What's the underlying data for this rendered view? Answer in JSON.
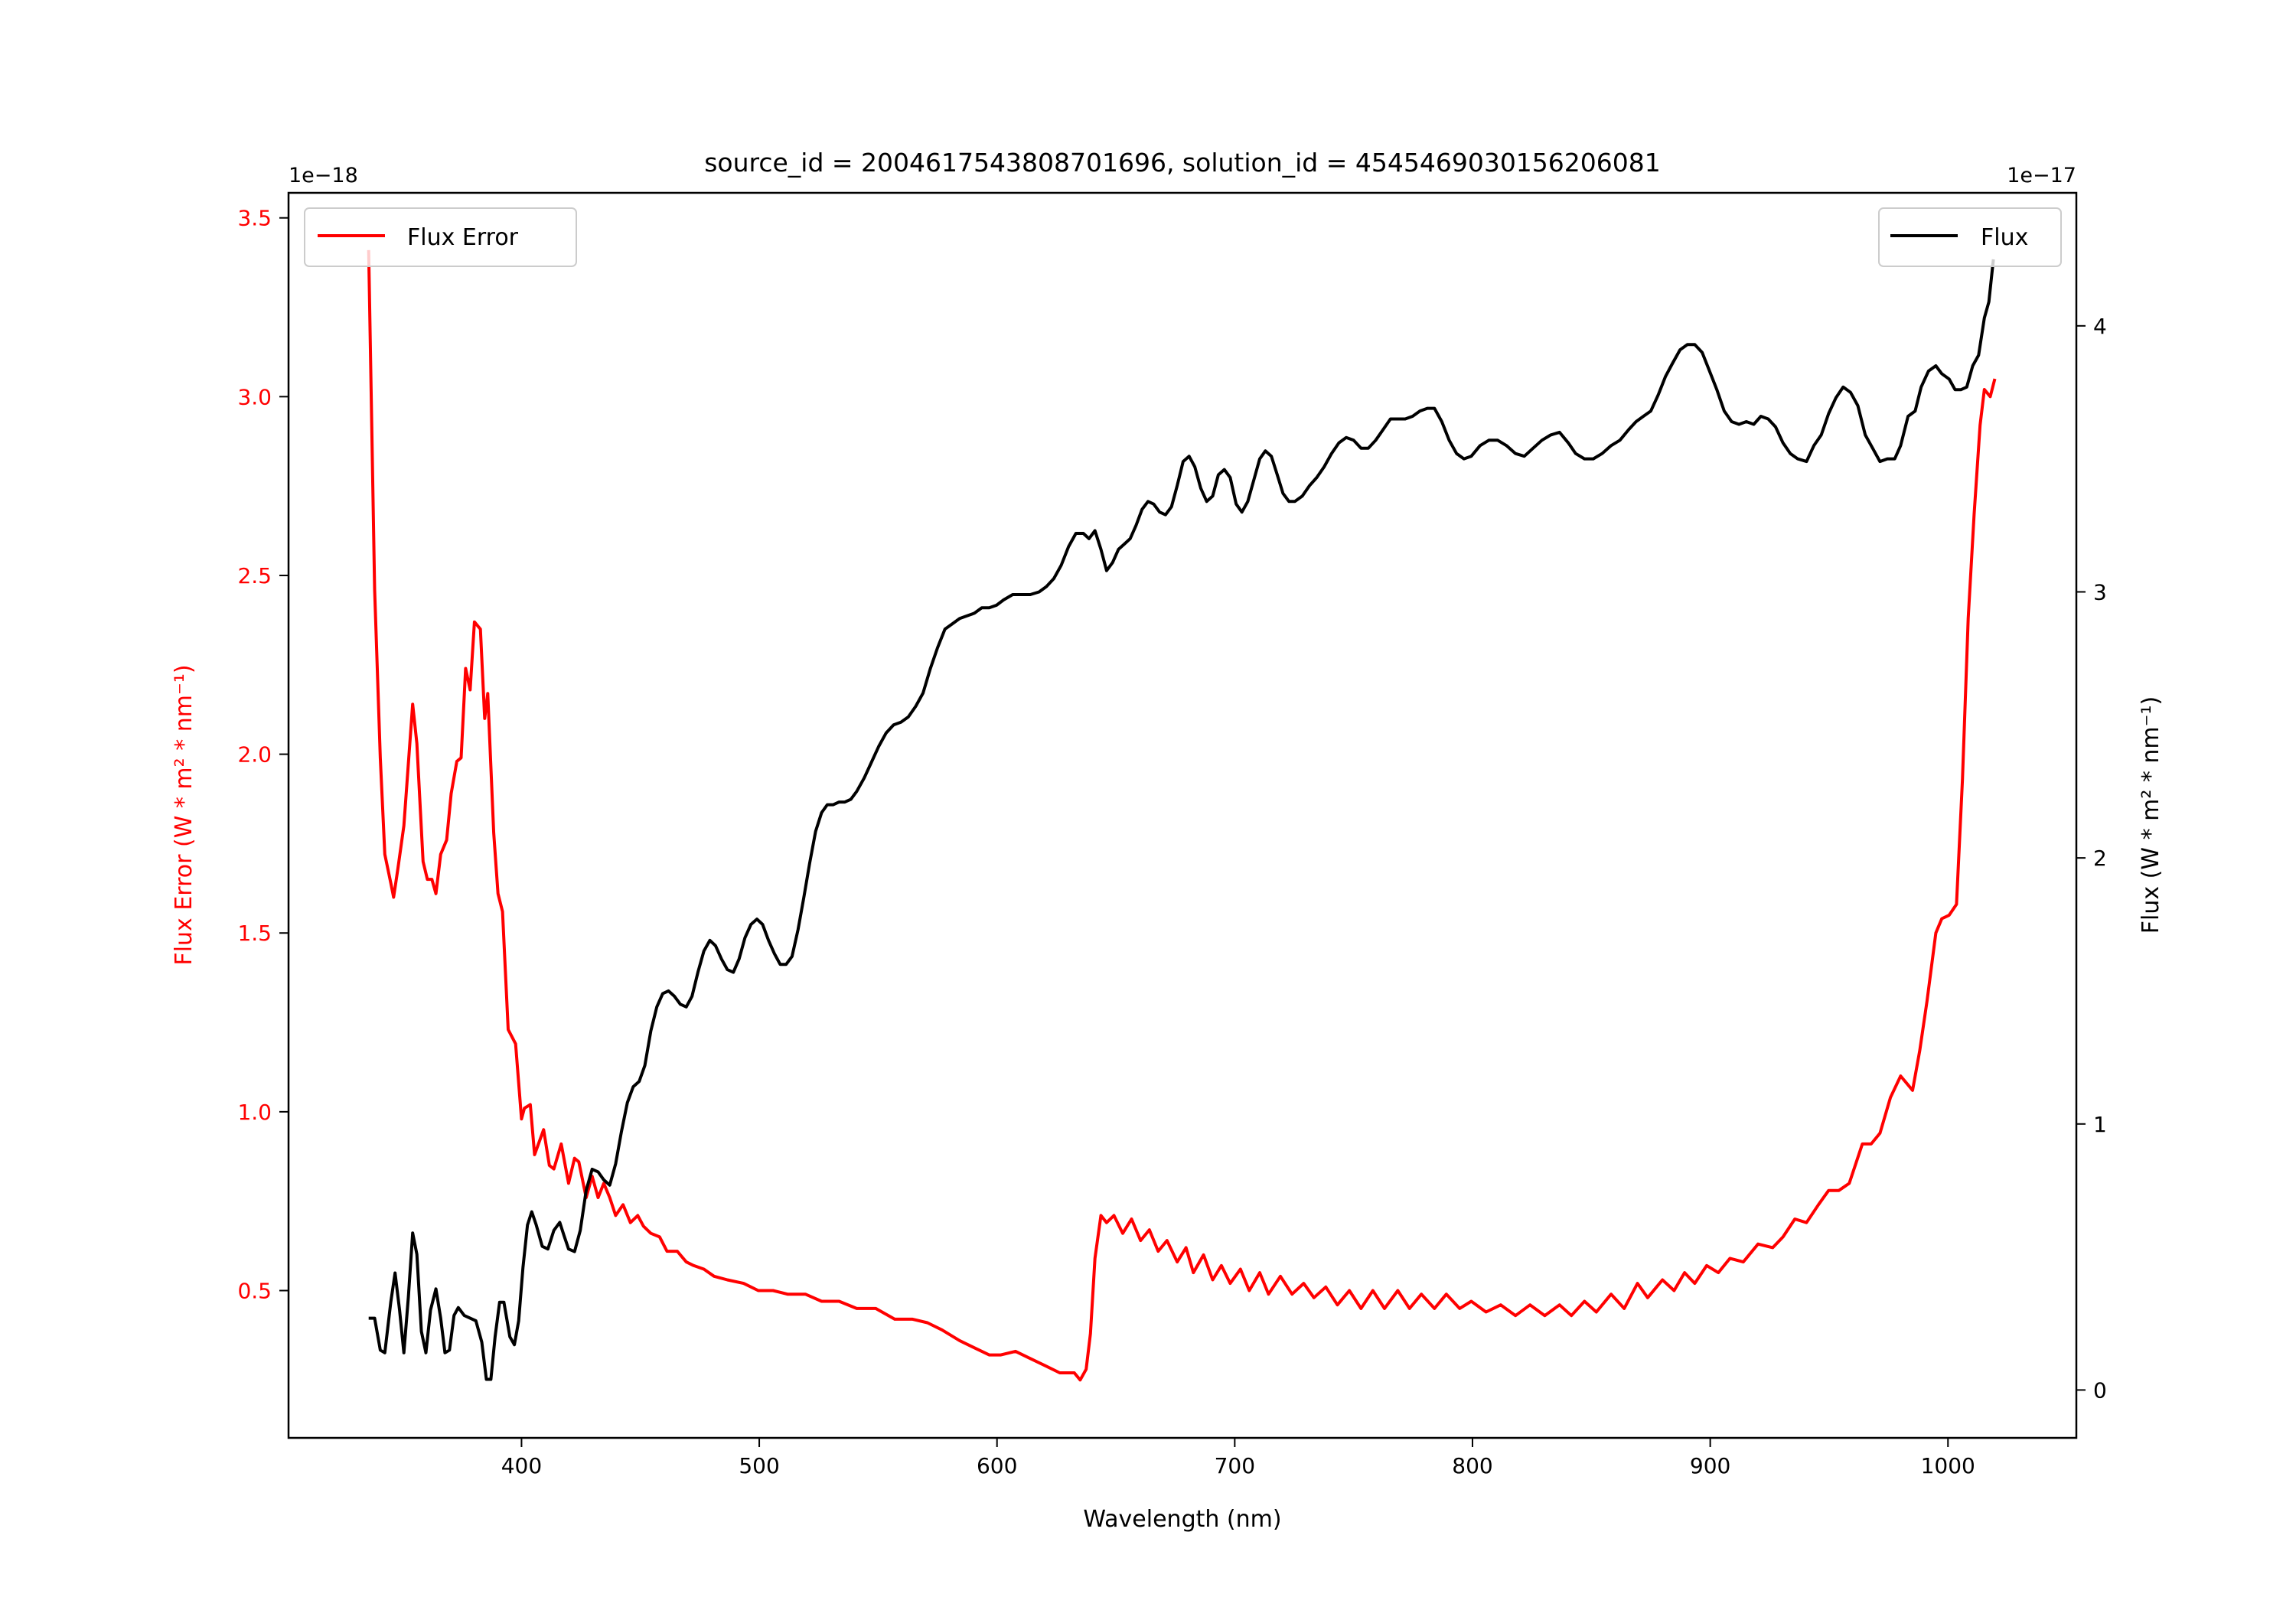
{
  "chart_data": {
    "type": "line",
    "title": "source_id = 2004617543808701696, solution_id = 4545469030156206081",
    "xlabel": "Wavelength (nm)",
    "ylabel_left": "Flux Error (W * m² * nm⁻¹)",
    "ylabel_right": "Flux (W * m² * nm⁻¹)",
    "left_offset_label": "1e−18",
    "right_offset_label": "1e−17",
    "xlim": [
      302,
      1054
    ],
    "ylim_left": [
      0.088,
      3.57
    ],
    "ylim_right": [
      -0.18,
      4.5
    ],
    "xticks": [
      "400",
      "500",
      "600",
      "700",
      "800",
      "900",
      "1000"
    ],
    "yticks_left": [
      "0.5",
      "1.0",
      "1.5",
      "2.0",
      "2.5",
      "3.0",
      "3.5"
    ],
    "yticks_right": [
      "0",
      "1",
      "2",
      "3",
      "4"
    ],
    "grid": false,
    "series": [
      {
        "name": "Flux Error",
        "axis": "left",
        "color": "#ff0000",
        "legend": "top-left",
        "x": [
          335.7,
          338.2,
          340.6,
          342.5,
          345,
          346.2,
          348,
          350.5,
          354.2,
          356,
          358.6,
          360.4,
          362.3,
          364,
          366,
          368.5,
          370.4,
          372.8,
          374.6,
          376.5,
          378.4,
          380.2,
          382.7,
          384.5,
          385.8,
          388.3,
          390.1,
          392,
          394.4,
          397.5,
          400,
          401.2,
          403.7,
          405.5,
          409.3,
          411.7,
          413.6,
          416.7,
          419.8,
          422.3,
          424.1,
          427.2,
          429.7,
          432.2,
          434.6,
          437.1,
          439.6,
          442.7,
          445.8,
          448.9,
          451.3,
          454.4,
          458.1,
          461.2,
          465.5,
          469.3,
          472.4,
          476.7,
          481,
          486.6,
          493.4,
          499.6,
          505.8,
          511.9,
          519.4,
          526.2,
          533.6,
          541,
          549,
          557,
          564.5,
          570.7,
          576.9,
          584.3,
          590.5,
          596.7,
          601.6,
          607.8,
          614,
          620.2,
          626.4,
          632.5,
          635,
          637.5,
          639.3,
          641.2,
          643.7,
          646.1,
          649.2,
          652.9,
          656.6,
          660.4,
          664.1,
          667.8,
          671.5,
          675.8,
          679.5,
          682.6,
          686.9,
          690.7,
          694.4,
          698.1,
          702.4,
          706.1,
          710.5,
          714.2,
          719.2,
          724.1,
          729,
          733.3,
          738.3,
          743.2,
          748.2,
          753.1,
          758.1,
          763,
          768.6,
          773.5,
          778.5,
          784,
          789,
          794.6,
          799.5,
          805.7,
          811.9,
          818.1,
          824.2,
          830.4,
          836.6,
          841.6,
          847.1,
          852.1,
          858.3,
          863.8,
          869.4,
          873.7,
          879.9,
          884.8,
          889.2,
          893.5,
          898.5,
          903.4,
          908.3,
          913.9,
          920.1,
          926.3,
          930.6,
          935.6,
          940.5,
          945.5,
          949.8,
          954.1,
          958.5,
          964,
          967.7,
          971.4,
          975.8,
          980.1,
          985.1,
          988.1,
          991.2,
          994.9,
          997.4,
          1000.5,
          1003.6,
          1006.1,
          1008.5,
          1011,
          1013.5,
          1015.3,
          1017.8,
          1019.7
        ],
        "y": [
          3.41,
          2.46,
          1.99,
          1.72,
          1.64,
          1.6,
          1.68,
          1.8,
          2.14,
          2.03,
          1.7,
          1.65,
          1.65,
          1.61,
          1.72,
          1.76,
          1.89,
          1.98,
          1.99,
          2.24,
          2.18,
          2.37,
          2.35,
          2.1,
          2.17,
          1.78,
          1.61,
          1.56,
          1.23,
          1.19,
          0.98,
          1.01,
          1.02,
          0.88,
          0.95,
          0.85,
          0.84,
          0.91,
          0.8,
          0.87,
          0.86,
          0.76,
          0.82,
          0.76,
          0.8,
          0.76,
          0.71,
          0.74,
          0.69,
          0.71,
          0.68,
          0.66,
          0.65,
          0.61,
          0.61,
          0.58,
          0.57,
          0.56,
          0.54,
          0.53,
          0.52,
          0.5,
          0.5,
          0.49,
          0.49,
          0.47,
          0.47,
          0.45,
          0.45,
          0.42,
          0.42,
          0.41,
          0.39,
          0.36,
          0.34,
          0.32,
          0.32,
          0.33,
          0.31,
          0.29,
          0.27,
          0.27,
          0.25,
          0.28,
          0.38,
          0.59,
          0.71,
          0.69,
          0.71,
          0.66,
          0.7,
          0.64,
          0.67,
          0.61,
          0.64,
          0.58,
          0.62,
          0.55,
          0.6,
          0.53,
          0.57,
          0.52,
          0.56,
          0.5,
          0.55,
          0.49,
          0.54,
          0.49,
          0.52,
          0.48,
          0.51,
          0.46,
          0.5,
          0.45,
          0.5,
          0.45,
          0.5,
          0.45,
          0.49,
          0.45,
          0.49,
          0.45,
          0.47,
          0.44,
          0.46,
          0.43,
          0.46,
          0.43,
          0.46,
          0.43,
          0.47,
          0.44,
          0.49,
          0.45,
          0.52,
          0.48,
          0.53,
          0.5,
          0.55,
          0.52,
          0.57,
          0.55,
          0.59,
          0.58,
          0.63,
          0.62,
          0.65,
          0.7,
          0.69,
          0.74,
          0.78,
          0.78,
          0.8,
          0.91,
          0.91,
          0.94,
          1.04,
          1.1,
          1.06,
          1.17,
          1.31,
          1.5,
          1.54,
          1.55,
          1.58,
          1.93,
          2.38,
          2.67,
          2.92,
          3.02,
          3.0,
          3.05
        ]
      },
      {
        "name": "Flux",
        "axis": "right",
        "color": "#000000",
        "legend": "top-right",
        "x": [
          335.7,
          338.2,
          340.6,
          342.5,
          345,
          346.8,
          348.7,
          350.5,
          352.4,
          354.2,
          356,
          357.9,
          359.8,
          361.7,
          364,
          366,
          367.8,
          369.7,
          371.6,
          373.4,
          375.9,
          378.4,
          380.8,
          383.3,
          385.2,
          387.1,
          388.9,
          390.8,
          392.6,
          395.1,
          397,
          398.8,
          400.6,
          402.5,
          404.3,
          406.2,
          408.7,
          411.1,
          413.6,
          416.1,
          417.9,
          419.8,
          422.3,
          424.7,
          427.2,
          429.7,
          432.2,
          434.6,
          437.1,
          439.6,
          442,
          444.5,
          447,
          449.5,
          451.9,
          454.4,
          456.9,
          459.4,
          461.8,
          464.3,
          466.8,
          469.3,
          471.7,
          474.2,
          476.7,
          479.2,
          481.6,
          484.1,
          486.6,
          489.1,
          491.5,
          494,
          496.5,
          499,
          501.4,
          503.9,
          506.4,
          508.8,
          511.3,
          513.8,
          516.3,
          518.7,
          521.2,
          523.7,
          526.2,
          528.6,
          531.1,
          533.6,
          536,
          538.5,
          541,
          544.1,
          547.2,
          550.3,
          553.4,
          556.5,
          559.6,
          562.7,
          565.8,
          568.9,
          571.9,
          575,
          578.1,
          581.2,
          584.3,
          587.4,
          590.5,
          593.6,
          596.7,
          599.8,
          602.8,
          606.6,
          610.3,
          614,
          617.7,
          620.8,
          623.9,
          627,
          630.1,
          633.2,
          636.3,
          638.7,
          641.2,
          643.7,
          646.1,
          648.6,
          651.1,
          653.6,
          656,
          658.5,
          661,
          663.5,
          665.9,
          668.4,
          670.9,
          673.4,
          675.8,
          678.3,
          680.8,
          683.2,
          685.7,
          688.2,
          690.7,
          693.1,
          695.6,
          698.1,
          700.6,
          703,
          705.5,
          708,
          710.5,
          712.9,
          715.4,
          717.9,
          720.3,
          722.8,
          725.3,
          728.4,
          731.5,
          734.5,
          737.6,
          740.7,
          743.8,
          746.9,
          750,
          753.1,
          756.2,
          759.3,
          762.4,
          765.5,
          768.6,
          771.7,
          774.8,
          777.9,
          781,
          784,
          787.1,
          790.2,
          793.3,
          796.4,
          799.5,
          803.2,
          806.9,
          810.6,
          814.3,
          818.1,
          821.8,
          825.5,
          829.2,
          832.9,
          836.6,
          840.3,
          843.4,
          847.1,
          850.8,
          854.5,
          858.3,
          862,
          865.7,
          868.8,
          871.9,
          875,
          878.1,
          881.2,
          884.2,
          887.3,
          890.4,
          893.5,
          896.6,
          899.7,
          902.8,
          905.9,
          909,
          912.1,
          915.2,
          918.3,
          921.3,
          924.4,
          927.5,
          930.6,
          933.7,
          936.8,
          940.5,
          943.6,
          946.7,
          949.8,
          952.9,
          955.9,
          959,
          962.1,
          965.2,
          968.3,
          971.4,
          974.5,
          977.6,
          980.1,
          983.2,
          986.2,
          988.7,
          991.8,
          994.9,
          997.4,
          1000.5,
          1003,
          1005.4,
          1007.9,
          1010.4,
          1012.9,
          1015.3,
          1017.2,
          1019.1
        ],
        "y": [
          0.27,
          0.27,
          0.15,
          0.14,
          0.33,
          0.44,
          0.3,
          0.14,
          0.35,
          0.59,
          0.51,
          0.22,
          0.14,
          0.3,
          0.38,
          0.27,
          0.14,
          0.15,
          0.28,
          0.31,
          0.28,
          0.27,
          0.26,
          0.18,
          0.04,
          0.04,
          0.2,
          0.33,
          0.33,
          0.2,
          0.17,
          0.26,
          0.46,
          0.62,
          0.67,
          0.62,
          0.54,
          0.53,
          0.6,
          0.63,
          0.58,
          0.53,
          0.52,
          0.6,
          0.75,
          0.83,
          0.82,
          0.79,
          0.77,
          0.85,
          0.97,
          1.08,
          1.14,
          1.16,
          1.22,
          1.35,
          1.44,
          1.49,
          1.5,
          1.48,
          1.45,
          1.44,
          1.48,
          1.57,
          1.65,
          1.69,
          1.67,
          1.62,
          1.58,
          1.57,
          1.62,
          1.7,
          1.75,
          1.77,
          1.75,
          1.69,
          1.64,
          1.6,
          1.6,
          1.63,
          1.73,
          1.85,
          1.98,
          2.1,
          2.17,
          2.2,
          2.2,
          2.21,
          2.21,
          2.22,
          2.25,
          2.3,
          2.36,
          2.42,
          2.47,
          2.5,
          2.51,
          2.53,
          2.57,
          2.62,
          2.71,
          2.79,
          2.86,
          2.88,
          2.9,
          2.91,
          2.92,
          2.94,
          2.94,
          2.95,
          2.97,
          2.99,
          2.99,
          2.99,
          3.0,
          3.02,
          3.05,
          3.1,
          3.17,
          3.22,
          3.22,
          3.2,
          3.23,
          3.16,
          3.08,
          3.11,
          3.16,
          3.18,
          3.2,
          3.25,
          3.31,
          3.34,
          3.33,
          3.3,
          3.29,
          3.32,
          3.4,
          3.49,
          3.51,
          3.47,
          3.39,
          3.34,
          3.36,
          3.44,
          3.46,
          3.43,
          3.33,
          3.3,
          3.34,
          3.42,
          3.5,
          3.53,
          3.51,
          3.44,
          3.37,
          3.34,
          3.34,
          3.36,
          3.4,
          3.43,
          3.47,
          3.52,
          3.56,
          3.58,
          3.57,
          3.54,
          3.54,
          3.57,
          3.61,
          3.65,
          3.65,
          3.65,
          3.66,
          3.68,
          3.69,
          3.69,
          3.64,
          3.57,
          3.52,
          3.5,
          3.51,
          3.55,
          3.57,
          3.57,
          3.55,
          3.52,
          3.51,
          3.54,
          3.57,
          3.59,
          3.6,
          3.56,
          3.52,
          3.5,
          3.5,
          3.52,
          3.55,
          3.57,
          3.61,
          3.64,
          3.66,
          3.68,
          3.74,
          3.81,
          3.86,
          3.91,
          3.93,
          3.93,
          3.9,
          3.83,
          3.76,
          3.68,
          3.64,
          3.63,
          3.64,
          3.63,
          3.66,
          3.65,
          3.62,
          3.56,
          3.52,
          3.5,
          3.49,
          3.55,
          3.59,
          3.67,
          3.73,
          3.77,
          3.75,
          3.7,
          3.59,
          3.54,
          3.49,
          3.5,
          3.5,
          3.55,
          3.66,
          3.68,
          3.77,
          3.83,
          3.85,
          3.82,
          3.8,
          3.76,
          3.76,
          3.77,
          3.85,
          3.89,
          4.03,
          4.09,
          4.25
        ]
      }
    ]
  }
}
